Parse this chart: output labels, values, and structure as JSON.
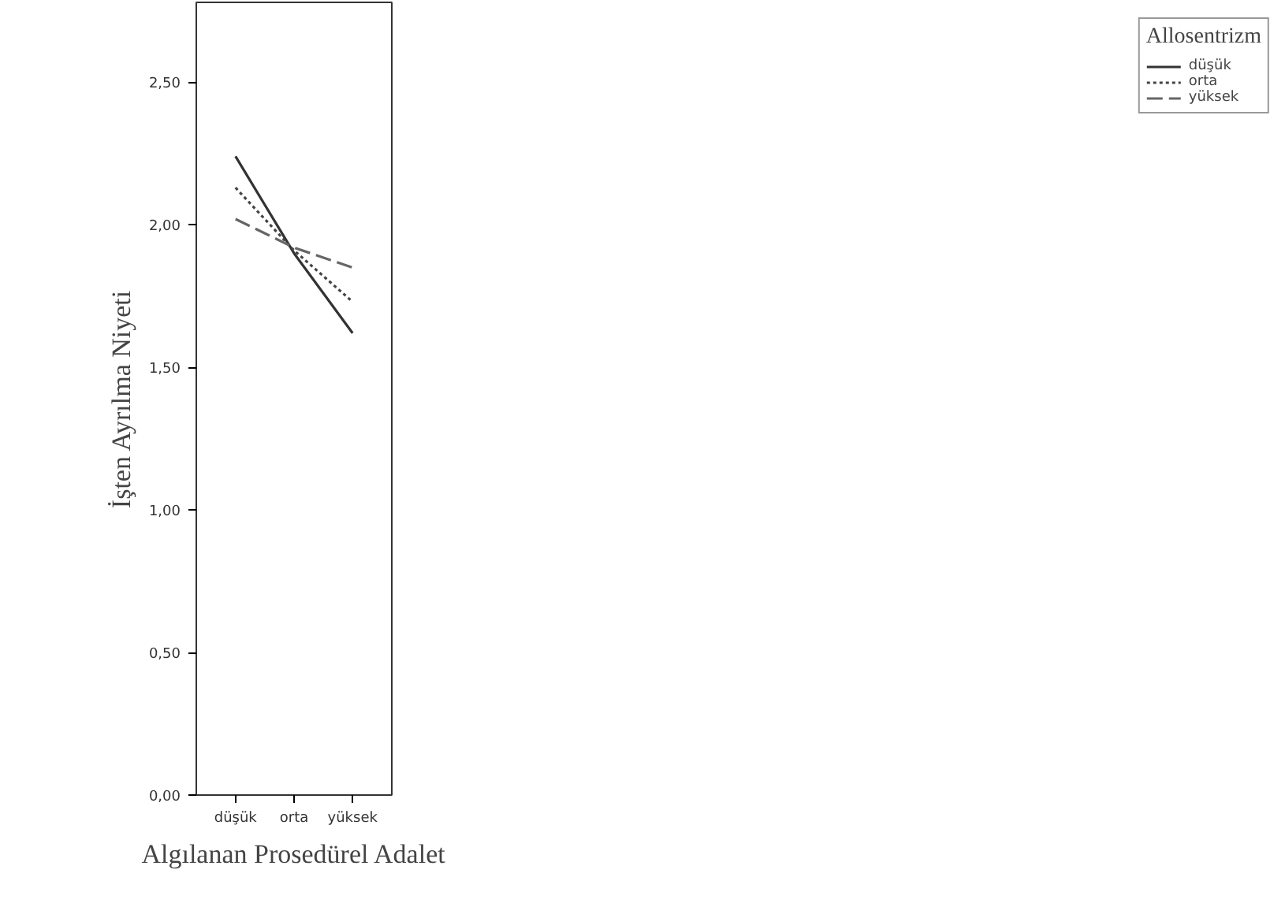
{
  "chart_data": {
    "type": "line",
    "xlabel": "Algılanan Prosedürel Adalet",
    "ylabel": "İşten Ayrılma Niyeti",
    "legend_title": "Allosentrizm",
    "categories": [
      "düşük",
      "orta",
      "yüksek"
    ],
    "series": [
      {
        "name": "düşük",
        "color": "#333333",
        "line_style": "solid",
        "values": [
          2.24,
          1.9,
          1.62
        ]
      },
      {
        "name": "orta",
        "color": "#444444",
        "line_style": "dotted",
        "values": [
          2.13,
          1.91,
          1.73
        ]
      },
      {
        "name": "yüksek",
        "color": "#666666",
        "line_style": "dashed",
        "values": [
          2.02,
          1.92,
          1.85
        ]
      }
    ],
    "ylim": [
      0,
      2.78
    ],
    "yticks": [
      {
        "value": 0,
        "label": "0,00"
      },
      {
        "value": 0.5,
        "label": "0,50"
      },
      {
        "value": 1,
        "label": "1,00"
      },
      {
        "value": 1.5,
        "label": "1,50"
      },
      {
        "value": 2,
        "label": "2,00"
      },
      {
        "value": 2.5,
        "label": "2,50"
      }
    ],
    "grid": false,
    "legend": "right"
  }
}
